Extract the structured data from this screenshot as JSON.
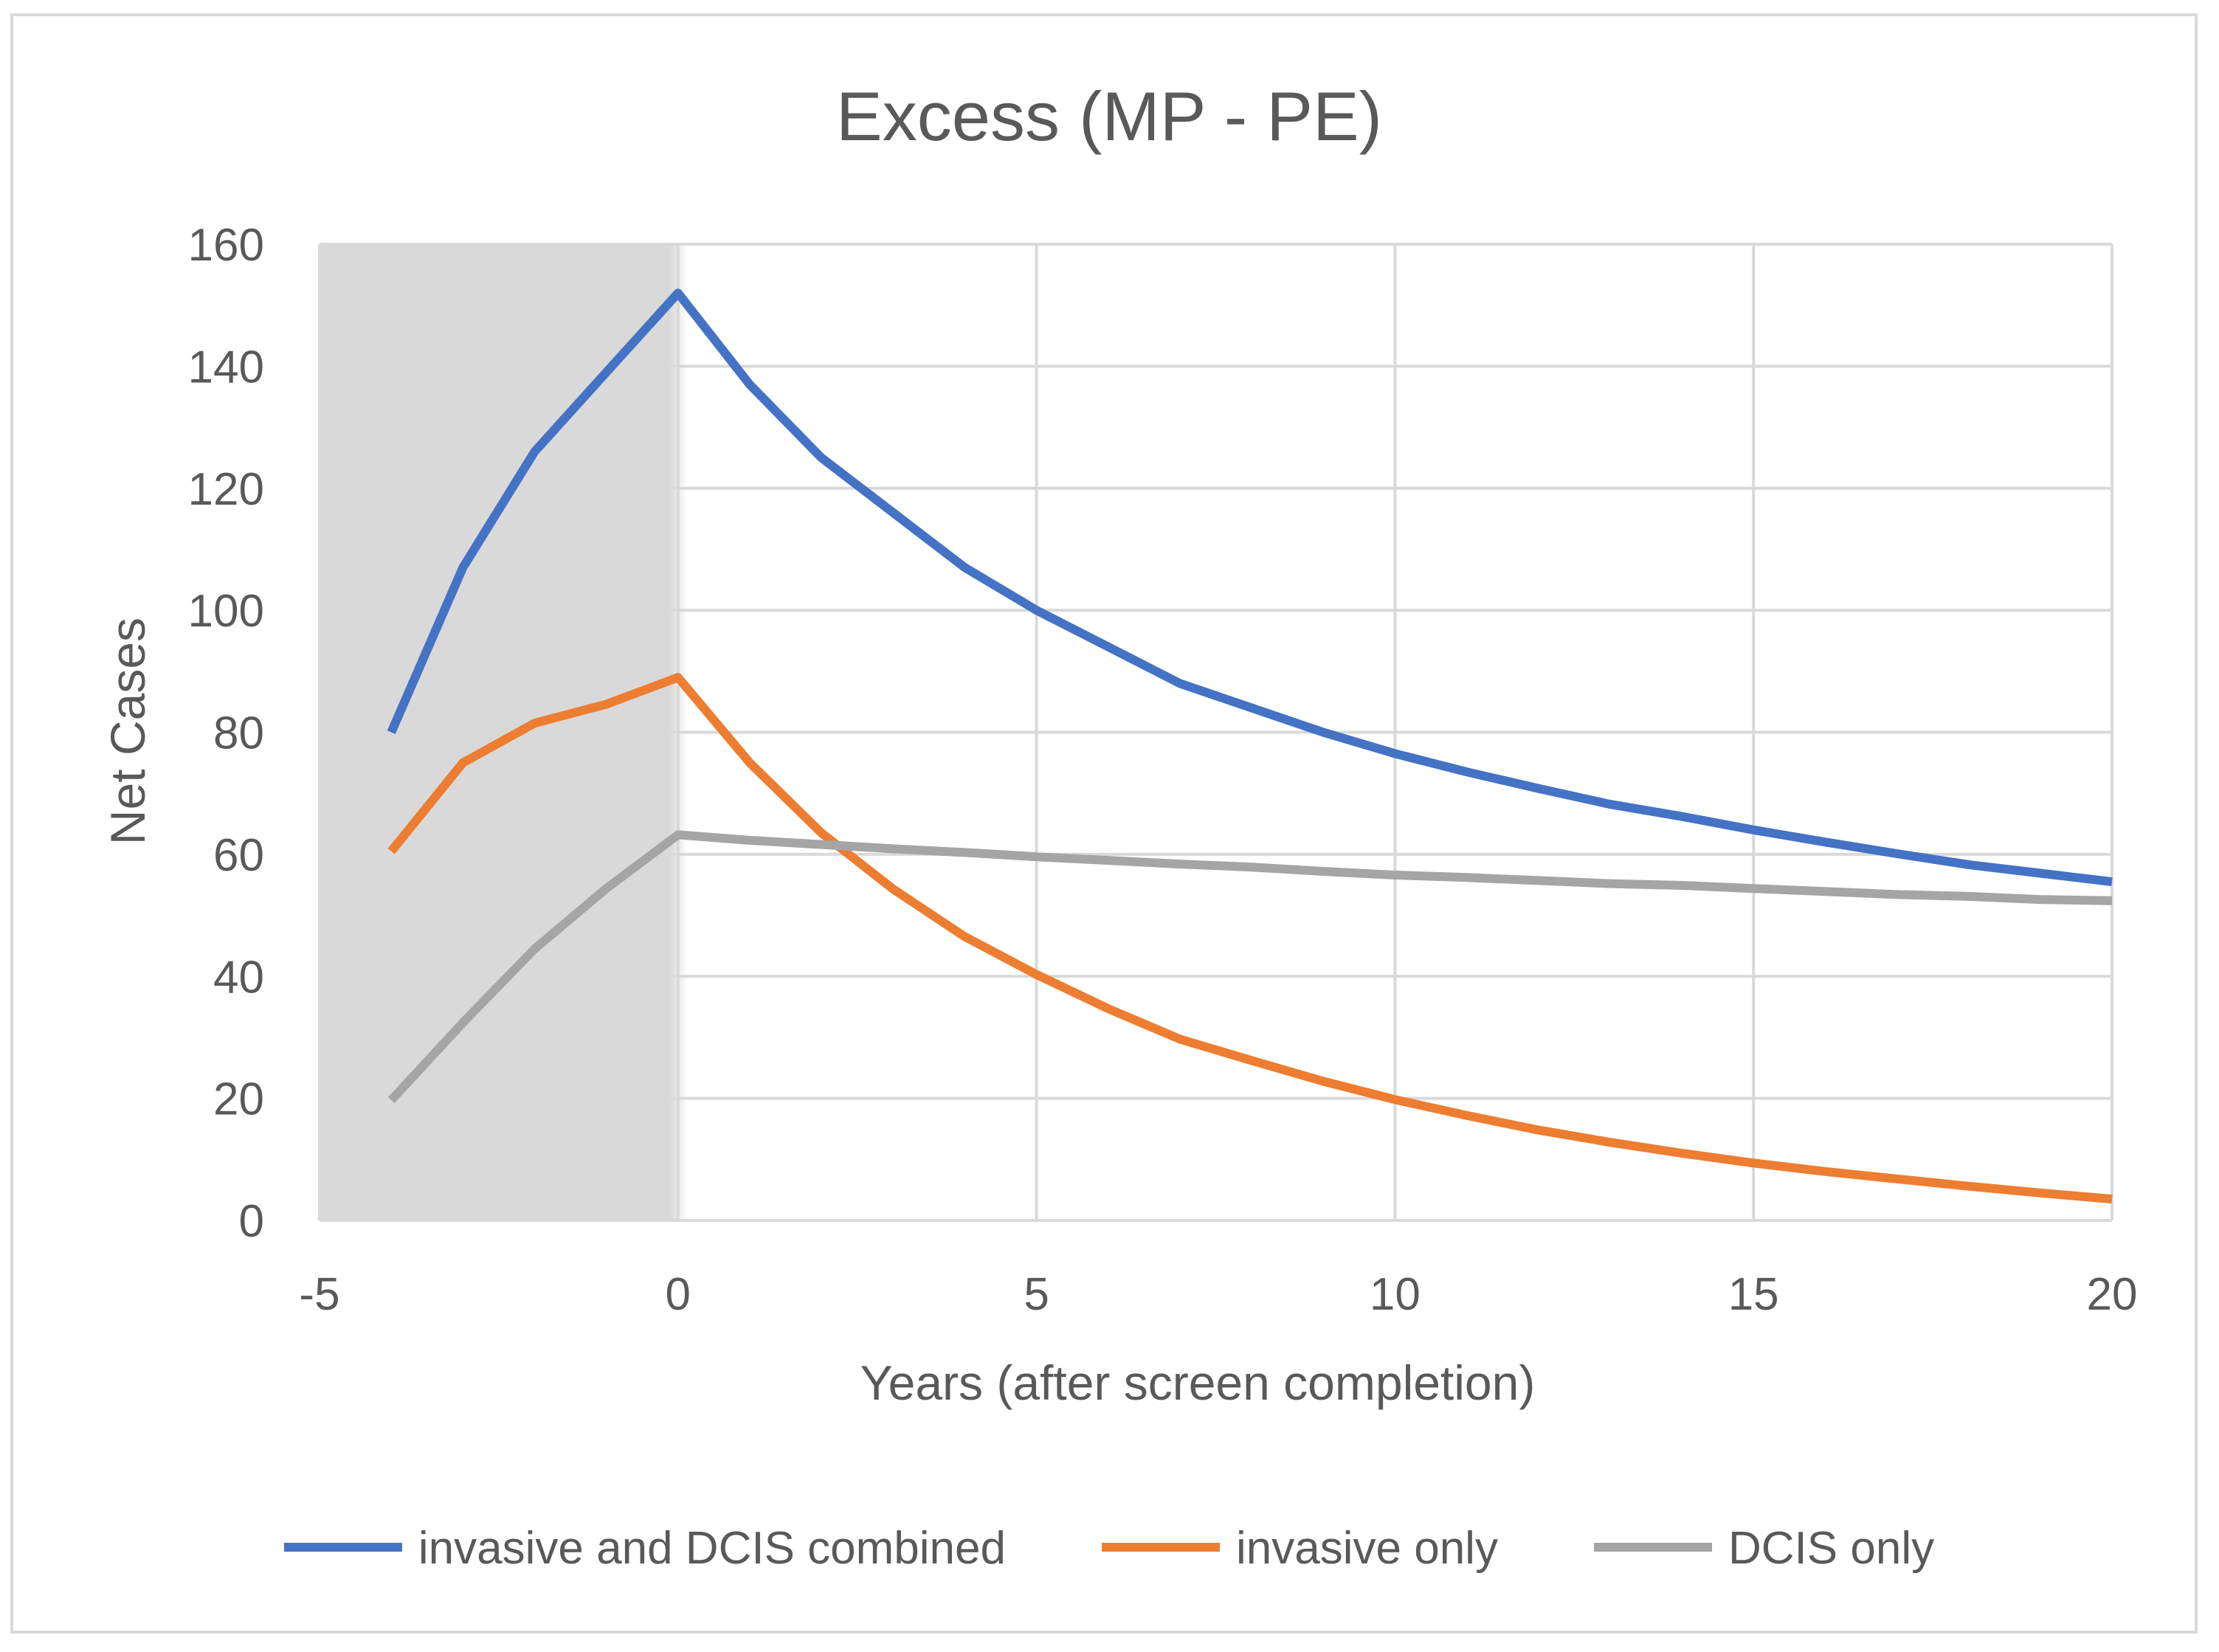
{
  "chart_data": {
    "type": "line",
    "title": "Excess (MP - PE)",
    "xlabel": "Years (after screen completion)",
    "ylabel": "Net Cases",
    "xlim": [
      -5,
      20
    ],
    "ylim": [
      0,
      160
    ],
    "x_ticks": [
      "-5",
      "0",
      "5",
      "10",
      "15",
      "20"
    ],
    "y_ticks": [
      "0",
      "20",
      "40",
      "60",
      "80",
      "100",
      "120",
      "140",
      "160"
    ],
    "grid": true,
    "legend_position": "bottom",
    "shaded_region": {
      "x_from": -5,
      "x_to": 0,
      "color": "#d9d9d9"
    },
    "series": [
      {
        "name": "invasive and DCIS combined",
        "color": "#4472c4",
        "x": [
          -4,
          -3,
          -2,
          -1,
          0,
          1,
          2,
          3,
          4,
          5,
          6,
          7,
          8,
          9,
          10,
          11,
          12,
          13,
          14,
          15,
          16,
          17,
          18,
          19,
          20
        ],
        "y": [
          80,
          107,
          126,
          139,
          152,
          137,
          125,
          116,
          107,
          100,
          94,
          88,
          84,
          80,
          76.5,
          73.5,
          70.8,
          68.2,
          66.2,
          64,
          62,
          60.1,
          58.3,
          56.9,
          55.5
        ]
      },
      {
        "name": "invasive only",
        "color": "#ed7d31",
        "x": [
          -4,
          -3,
          -2,
          -1,
          0,
          1,
          2,
          3,
          4,
          5,
          6,
          7,
          8,
          9,
          10,
          11,
          12,
          13,
          14,
          15,
          16,
          17,
          18,
          19,
          20
        ],
        "y": [
          60.5,
          75,
          81.5,
          84.6,
          89,
          75,
          63.5,
          54.3,
          46.5,
          40.3,
          34.7,
          29.7,
          26.2,
          22.8,
          19.8,
          17.2,
          14.8,
          12.8,
          11,
          9.4,
          8,
          6.8,
          5.6,
          4.5,
          3.5
        ]
      },
      {
        "name": "DCIS only",
        "color": "#a5a5a5",
        "x": [
          -4,
          -3,
          -2,
          -1,
          0,
          1,
          2,
          3,
          4,
          5,
          6,
          7,
          8,
          9,
          10,
          11,
          12,
          13,
          14,
          15,
          16,
          17,
          18,
          19,
          20
        ],
        "y": [
          19.7,
          32.4,
          44.5,
          54.4,
          63.2,
          62.3,
          61.6,
          60.9,
          60.3,
          59.6,
          59,
          58.4,
          57.9,
          57.2,
          56.6,
          56.2,
          55.7,
          55.2,
          54.9,
          54.4,
          53.9,
          53.4,
          53.1,
          52.6,
          52.4
        ]
      }
    ]
  }
}
